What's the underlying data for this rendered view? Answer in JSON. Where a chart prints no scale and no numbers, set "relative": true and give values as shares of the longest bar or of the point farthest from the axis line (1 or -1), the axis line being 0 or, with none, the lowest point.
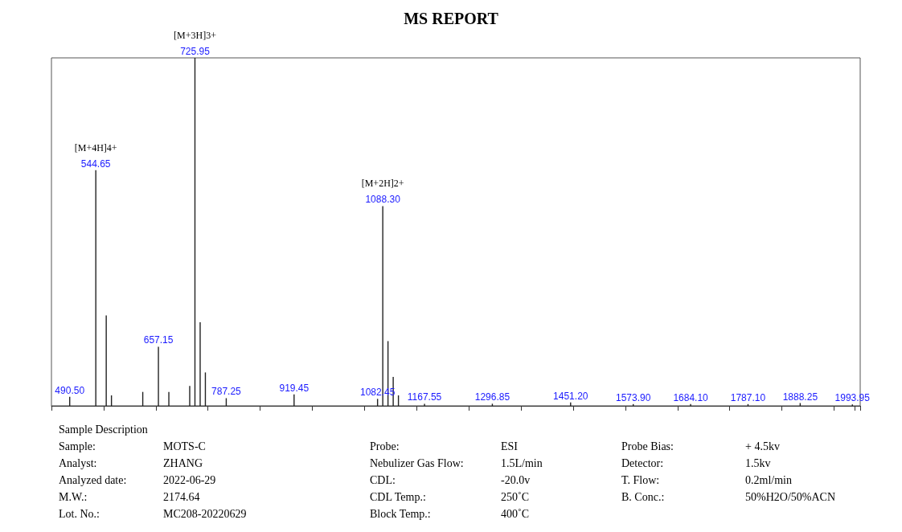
{
  "chart_data": {
    "type": "bar",
    "title": "MS REPORT",
    "categories": [
      null,
      null,
      null,
      "490.50",
      null,
      null,
      null,
      null,
      "544.65",
      null,
      null,
      null,
      null,
      null,
      null,
      null,
      null,
      null,
      null,
      null,
      "657.15",
      null,
      null,
      null,
      null,
      null,
      null,
      "725.95",
      null,
      null,
      null,
      null,
      null,
      "787.25",
      null,
      null,
      null,
      null,
      null,
      null,
      null,
      null,
      null,
      null,
      null,
      null,
      "919.45",
      null,
      null,
      null,
      null,
      null,
      null,
      null,
      null,
      null,
      null,
      null,
      null,
      null,
      null,
      null,
      "1082.45",
      "1088.30",
      null,
      null,
      null,
      null,
      null,
      null,
      null,
      "1167.55",
      null,
      null,
      null,
      null,
      null,
      null,
      null,
      null,
      null,
      null,
      null,
      null,
      "1296.85",
      null,
      null,
      null,
      null,
      null,
      null,
      null,
      null,
      null,
      null,
      null,
      null,
      null,
      null,
      "1451.20",
      null,
      null,
      null,
      null,
      null,
      null,
      null,
      null,
      null,
      null,
      null,
      "1573.90",
      null,
      null,
      null,
      null,
      null,
      null,
      null,
      null,
      null,
      null,
      "1684.10",
      null,
      null,
      null,
      null,
      null,
      null,
      null,
      null,
      null,
      null,
      "1787.10",
      null,
      null,
      null,
      null,
      null,
      null,
      null,
      null,
      null,
      "1888.25",
      null,
      null,
      null,
      null,
      null,
      null,
      null,
      null,
      null,
      "1993.95",
      null
    ],
    "values": [
      null,
      null,
      null,
      0.026,
      null,
      null,
      null,
      null,
      0.677,
      null,
      0.26,
      0.03,
      null,
      null,
      null,
      null,
      null,
      0.04,
      null,
      null,
      0.17,
      null,
      0.04,
      null,
      null,
      null,
      0.057,
      1,
      0.24,
      0.096,
      null,
      null,
      null,
      0.022,
      null,
      null,
      null,
      null,
      null,
      null,
      null,
      null,
      null,
      null,
      null,
      null,
      0.033,
      null,
      null,
      null,
      null,
      null,
      null,
      null,
      null,
      null,
      null,
      null,
      null,
      null,
      null,
      null,
      0.02,
      0.574,
      0.186,
      0.083,
      0.03,
      null,
      null,
      null,
      null,
      0.006,
      null,
      null,
      null,
      null,
      null,
      null,
      null,
      null,
      null,
      null,
      null,
      null,
      0.006,
      null,
      null,
      null,
      null,
      null,
      null,
      null,
      null,
      null,
      null,
      null,
      null,
      null,
      null,
      0.01,
      null,
      null,
      null,
      null,
      null,
      null,
      null,
      null,
      null,
      null,
      null,
      0.005,
      null,
      null,
      null,
      null,
      null,
      null,
      null,
      null,
      null,
      null,
      0.005,
      null,
      null,
      null,
      null,
      null,
      null,
      null,
      null,
      null,
      null,
      0.005,
      null,
      null,
      null,
      null,
      null,
      null,
      null,
      null,
      null,
      0.008,
      null,
      null,
      null,
      null,
      null,
      null,
      null,
      null,
      null,
      0.004,
      null
    ],
    "color": "#222222",
    "relative": true,
    "annotations": [
      {
        "text": "[M+4H]4+",
        "x": "544.65",
        "y": 0.677
      },
      {
        "text": "[M+3H]3+",
        "x": "725.95",
        "y": 1
      },
      {
        "text": "[M+2H]2+",
        "x": "1088.30",
        "y": 0.574
      },
      "Sample Description",
      "Sample:",
      "MOTS-C",
      "Analyst:",
      "ZHANG",
      "Analyzed date:",
      "2022-06-29",
      "M.W.:",
      "2174.64",
      "Lot. No.:",
      "MC208-20220629",
      "Probe:",
      "ESI",
      "Nebulizer Gas Flow:",
      "1.5L/min",
      "CDL:",
      "-20.0v",
      "CDL Temp.:",
      "250˚C",
      "Block Temp.:",
      "400˚C",
      "Probe Bias:",
      "+ 4.5kv",
      "Detector:",
      "1.5kv",
      "T. Flow:",
      "0.2ml/min",
      "B. Conc.:",
      "50%H2O/50%ACN"
    ]
  }
}
